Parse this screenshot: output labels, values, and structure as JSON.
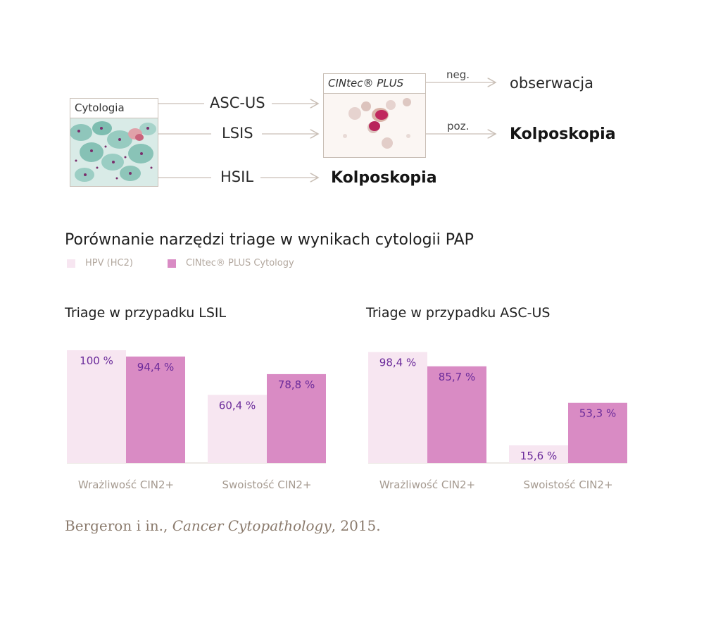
{
  "diagram": {
    "cytology_box_title": "Cytologia",
    "cintec_box_title": "CINtec® PLUS",
    "branches": [
      "ASC-US",
      "LSIS",
      "HSIL"
    ],
    "hsil_outcome": "Kolposkopia",
    "neg_label": "neg.",
    "neg_outcome": "obserwacja",
    "pos_label": "poz.",
    "pos_outcome": "Kolposkopia"
  },
  "main_title": "Porównanie narzędzi triage w wynikach cytologii PAP",
  "citation": {
    "authors": "Bergeron i in.,",
    "journal": "Cancer Cytopathology",
    "year": ", 2015."
  },
  "chart_data": [
    {
      "type": "bar",
      "title": "Triage w przypadku LSIL",
      "categories": [
        "Wrażliwość CIN2+",
        "Swoistość CIN2+"
      ],
      "series": [
        {
          "name": "HPV (HC2)",
          "values": [
            100,
            60.4
          ],
          "labels": [
            "100 %",
            "60,4 %"
          ],
          "color": "#f7e6f1"
        },
        {
          "name": "CINtec® PLUS Cytology",
          "values": [
            94.4,
            78.8
          ],
          "labels": [
            "94,4 %",
            "78,8 %"
          ],
          "color": "#d98bc4"
        }
      ],
      "ylim": [
        0,
        100
      ],
      "legend": "top-left"
    },
    {
      "type": "bar",
      "title": "Triage w przypadku ASC-US",
      "categories": [
        "Wrażliwość CIN2+",
        "Swoistość CIN2+"
      ],
      "series": [
        {
          "name": "HPV (HC2)",
          "values": [
            98.4,
            15.6
          ],
          "labels": [
            "98,4 %",
            "15,6 %"
          ],
          "color": "#f7e6f1"
        },
        {
          "name": "CINtec® PLUS Cytology",
          "values": [
            85.7,
            53.3
          ],
          "labels": [
            "85,7 %",
            "53,3 %"
          ],
          "color": "#d98bc4"
        }
      ],
      "ylim": [
        0,
        100
      ]
    }
  ],
  "colors": {
    "value_label": "#6a2a9a",
    "category_label": "#a59a90",
    "line": "#c9bfb6"
  }
}
